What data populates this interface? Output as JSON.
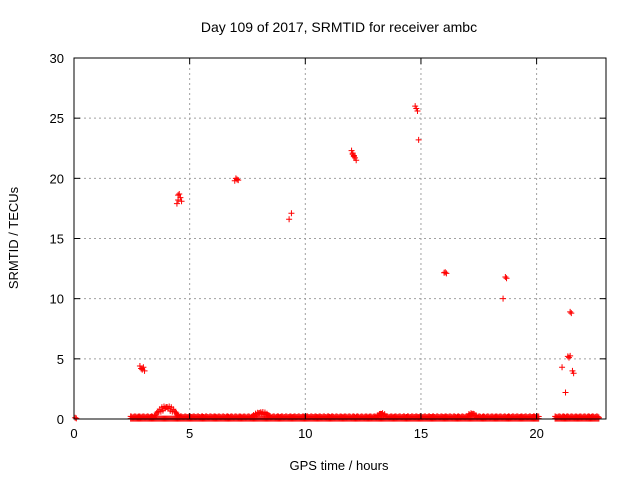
{
  "chart_data": {
    "type": "scatter",
    "title": "Day 109 of 2017, SRMTID for receiver ambc",
    "xlabel": "GPS time / hours",
    "ylabel": "SRMTID / TECUs",
    "xlim": [
      0,
      23
    ],
    "ylim": [
      0,
      30
    ],
    "xticks": [
      "0",
      "5",
      "10",
      "15",
      "20"
    ],
    "yticks": [
      "0",
      "5",
      "10",
      "15",
      "20",
      "25",
      "30"
    ],
    "grid": true,
    "marker": "plus",
    "series": [
      {
        "color": "#ff0000",
        "points": [
          [
            0.05,
            0.1
          ],
          [
            0.1,
            0.05
          ],
          [
            2.85,
            4.4
          ],
          [
            2.9,
            4.2
          ],
          [
            2.95,
            4.1
          ],
          [
            3.0,
            4.3
          ],
          [
            3.05,
            4.0
          ],
          [
            4.45,
            17.9
          ],
          [
            4.5,
            18.2
          ],
          [
            4.55,
            18.7
          ],
          [
            4.6,
            18.4
          ],
          [
            4.65,
            18.1
          ],
          [
            4.5,
            18.6
          ],
          [
            6.95,
            19.8
          ],
          [
            7.0,
            20.0
          ],
          [
            7.05,
            19.9
          ],
          [
            7.1,
            19.85
          ],
          [
            9.3,
            16.6
          ],
          [
            9.4,
            17.1
          ],
          [
            12.0,
            22.3
          ],
          [
            12.05,
            22.1
          ],
          [
            12.1,
            21.9
          ],
          [
            12.15,
            21.7
          ],
          [
            12.2,
            21.5
          ],
          [
            12.05,
            22.0
          ],
          [
            12.1,
            21.8
          ],
          [
            14.75,
            26.0
          ],
          [
            14.8,
            25.8
          ],
          [
            14.85,
            25.6
          ],
          [
            14.9,
            23.2
          ],
          [
            16.05,
            12.2
          ],
          [
            16.1,
            12.1
          ],
          [
            16.0,
            12.15
          ],
          [
            18.55,
            10.0
          ],
          [
            18.65,
            11.8
          ],
          [
            18.7,
            11.7
          ],
          [
            21.1,
            4.3
          ],
          [
            21.25,
            2.2
          ],
          [
            21.35,
            5.2
          ],
          [
            21.4,
            5.1
          ],
          [
            21.45,
            8.9
          ],
          [
            21.5,
            8.8
          ],
          [
            21.55,
            4.0
          ],
          [
            21.6,
            3.8
          ],
          [
            21.45,
            5.25
          ]
        ],
        "baseline": {
          "segments": [
            [
              2.45,
              20.1
            ],
            [
              20.8,
              22.7
            ]
          ],
          "bumps": [
            {
              "center": 4.0,
              "width": 0.6,
              "height": 1.1
            },
            {
              "center": 8.1,
              "width": 0.5,
              "height": 0.6
            },
            {
              "center": 13.3,
              "width": 0.3,
              "height": 0.5
            },
            {
              "center": 17.2,
              "width": 0.3,
              "height": 0.5
            }
          ]
        }
      }
    ]
  }
}
